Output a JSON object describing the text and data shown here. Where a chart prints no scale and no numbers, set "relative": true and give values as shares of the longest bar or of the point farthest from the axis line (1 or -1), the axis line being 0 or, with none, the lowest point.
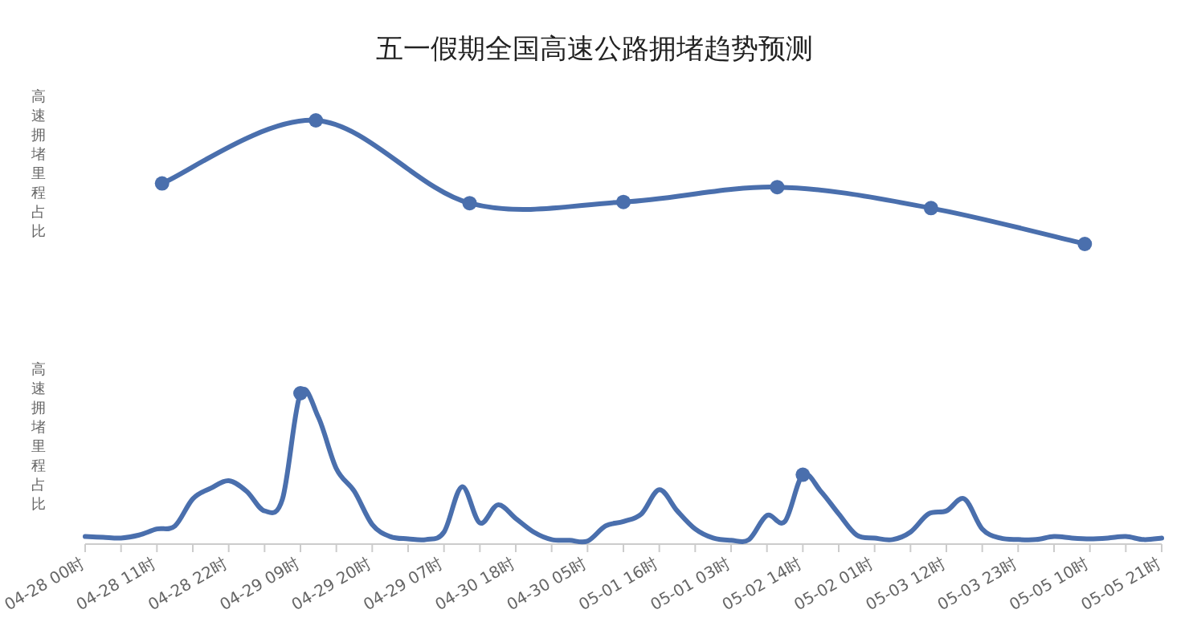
{
  "chart_data": [
    {
      "type": "line",
      "title": "五一假期全国高速公路拥堵趋势预测",
      "ylabel": "高速拥堵里程占比",
      "relative": true,
      "categories": [
        null,
        null,
        null,
        null,
        null,
        null,
        null
      ],
      "marker": "circle",
      "series": [
        {
          "color": "#4a6fad",
          "values": [
            0.49,
            1,
            0.33,
            0.34,
            0.46,
            0.29,
            0
          ]
        }
      ]
    },
    {
      "type": "line",
      "ylabel": "高速拥堵里程占比",
      "relative": true,
      "categories": [
        "04-28 00时",
        null,
        null,
        null,
        "04-28 11时",
        null,
        null,
        null,
        "04-28 22时",
        null,
        null,
        null,
        "04-29 09时",
        null,
        null,
        null,
        "04-29 20时",
        null,
        null,
        null,
        "04-29 07时",
        null,
        null,
        null,
        "04-30 18时",
        null,
        null,
        null,
        "04-30 05时",
        null,
        null,
        null,
        "05-01 16时",
        null,
        null,
        null,
        "05-01 03时",
        null,
        null,
        null,
        "05-02 14时",
        null,
        null,
        null,
        "05-02 01时",
        null,
        null,
        null,
        "05-03 12时",
        null,
        null,
        null,
        "05-03 23时",
        null,
        null,
        null,
        "05-05 10时",
        null,
        null,
        null,
        "05-05 21时"
      ],
      "series": [
        {
          "color": "#4a6fad",
          "values": [
            0.05,
            0.045,
            0.04,
            0.06,
            0.1,
            0.12,
            0.3,
            0.37,
            0.42,
            0.35,
            0.22,
            0.3,
            1,
            0.84,
            0.5,
            0.35,
            0.13,
            0.05,
            0.035,
            0.03,
            0.08,
            0.38,
            0.14,
            0.26,
            0.17,
            0.08,
            0.03,
            0.025,
            0.02,
            0.12,
            0.15,
            0.2,
            0.36,
            0.22,
            0.1,
            0.04,
            0.025,
            0.03,
            0.19,
            0.15,
            0.46,
            0.35,
            0.2,
            0.06,
            0.04,
            0.03,
            0.08,
            0.2,
            0.22,
            0.3,
            0.1,
            0.04,
            0.03,
            0.03,
            0.05,
            0.04,
            0.035,
            0.04,
            0.05,
            0.03,
            0.04
          ]
        },
        {
          "type": "scatter",
          "color": "#4a6fad",
          "marker": "circle",
          "values": [
            null,
            null,
            null,
            null,
            null,
            null,
            null,
            null,
            null,
            null,
            null,
            null,
            1,
            null,
            null,
            null,
            null,
            null,
            null,
            null,
            null,
            null,
            null,
            null,
            null,
            null,
            null,
            null,
            null,
            null,
            null,
            null,
            null,
            null,
            null,
            null,
            null,
            null,
            null,
            null,
            0.46,
            null,
            null,
            null,
            null,
            null,
            null,
            null,
            null,
            null,
            null,
            null,
            null,
            null,
            null,
            null,
            null,
            null,
            null,
            null,
            null
          ]
        }
      ]
    }
  ]
}
